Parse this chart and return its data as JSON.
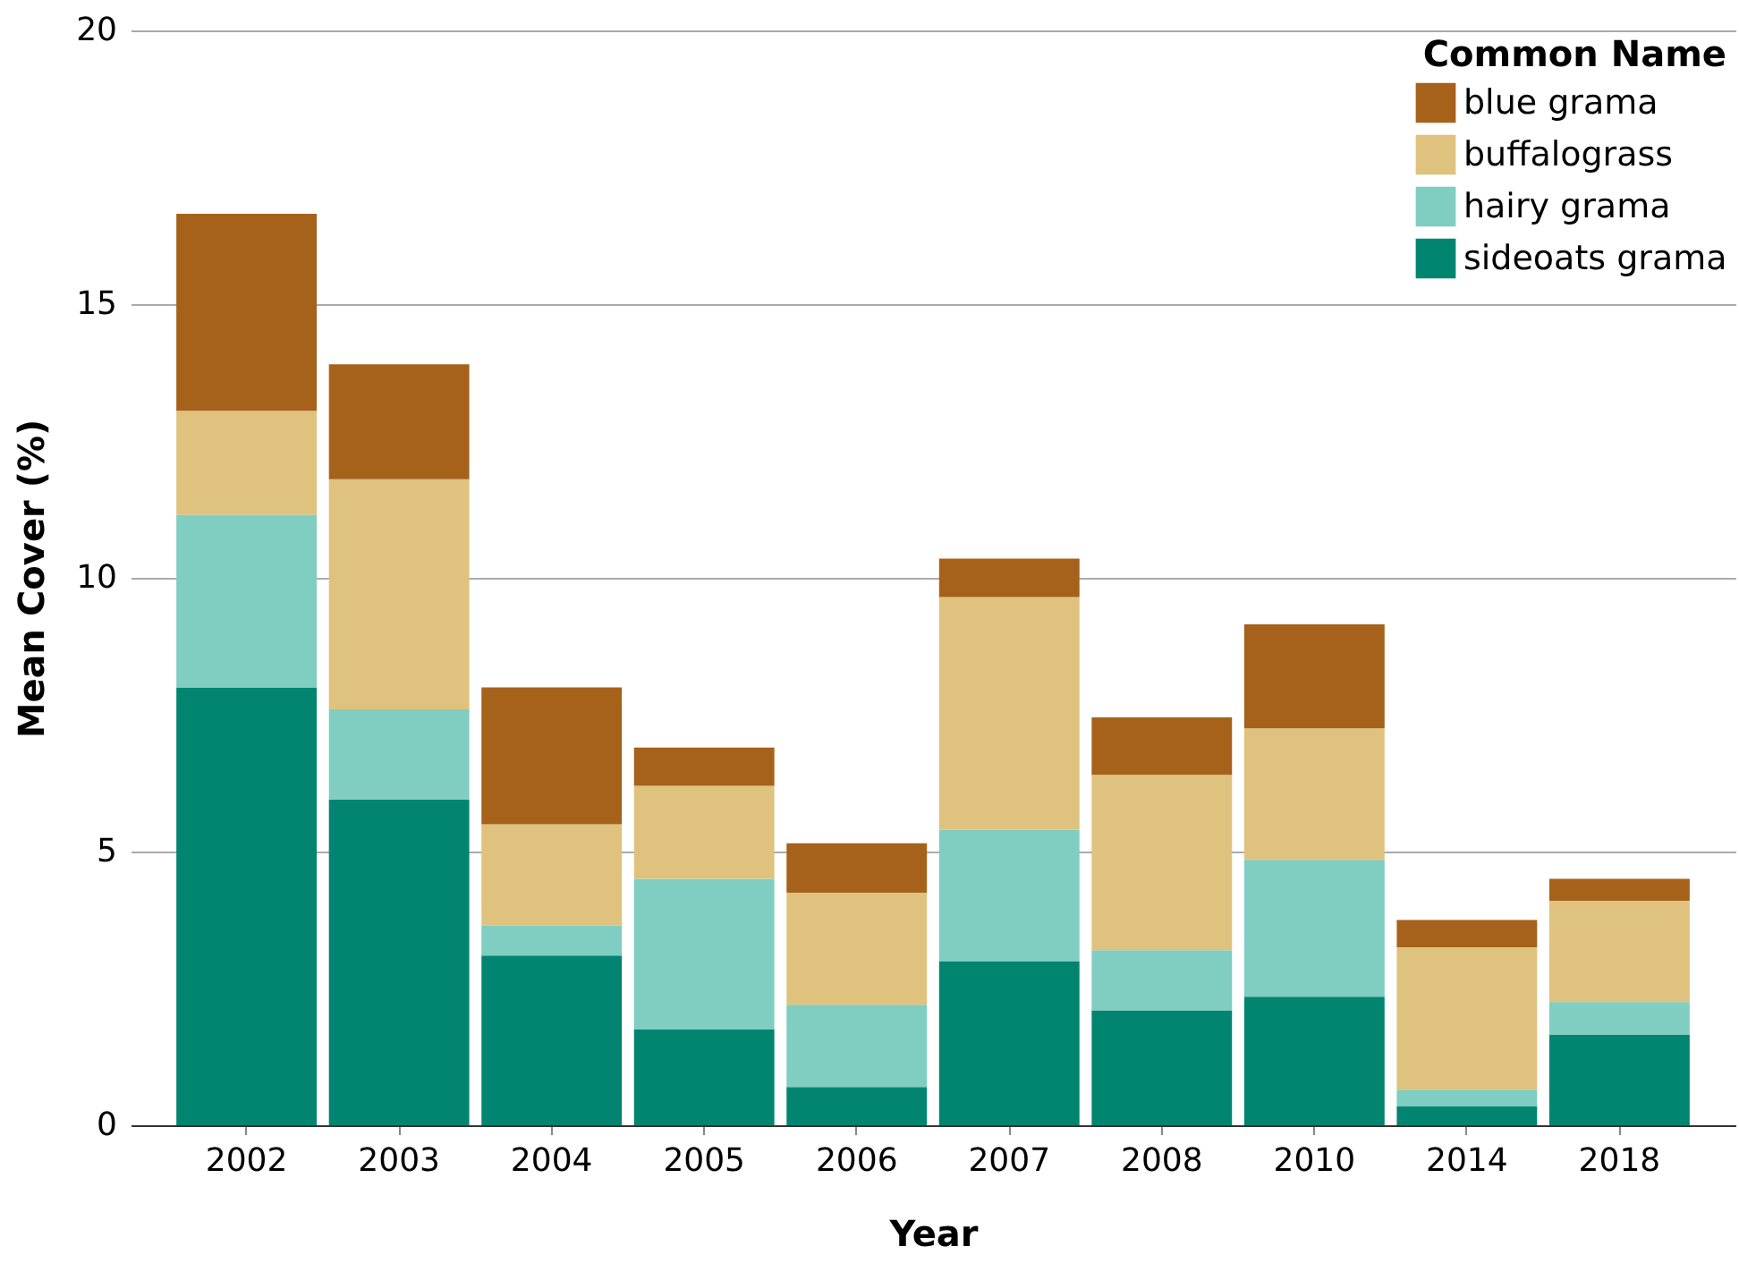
{
  "chart_data": {
    "type": "bar",
    "stacked": true,
    "xlabel": "Year",
    "ylabel": "Mean Cover (%)",
    "legend_title": "Common Name",
    "categories": [
      "2002",
      "2003",
      "2004",
      "2005",
      "2006",
      "2007",
      "2008",
      "2010",
      "2014",
      "2018"
    ],
    "series": [
      {
        "name": "sideoats grama",
        "color": "#018571",
        "values": [
          8.0,
          5.95,
          3.1,
          1.75,
          0.7,
          3.0,
          2.1,
          2.35,
          0.35,
          1.65
        ]
      },
      {
        "name": "hairy grama",
        "color": "#80cdc1",
        "values": [
          3.15,
          1.65,
          0.55,
          2.75,
          1.5,
          2.4,
          1.1,
          2.5,
          0.3,
          0.6
        ]
      },
      {
        "name": "buffalograss",
        "color": "#dfc27d",
        "values": [
          1.9,
          4.2,
          1.85,
          1.7,
          2.05,
          4.25,
          3.2,
          2.4,
          2.6,
          1.85
        ]
      },
      {
        "name": "blue grama",
        "color": "#a6611a",
        "values": [
          3.6,
          2.1,
          2.5,
          0.7,
          0.9,
          0.7,
          1.05,
          1.9,
          0.5,
          0.4
        ]
      }
    ],
    "ylim": [
      0,
      20
    ],
    "yticks": [
      0,
      5,
      10,
      15,
      20
    ],
    "grid": "y",
    "legend": "top right"
  }
}
